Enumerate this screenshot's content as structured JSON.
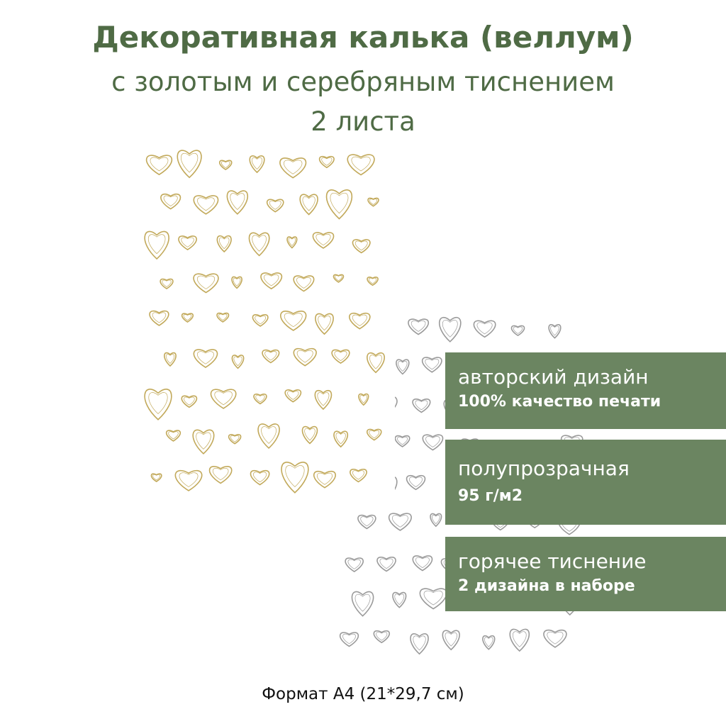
{
  "header": {
    "title": "Декоративная калька (веллум)",
    "subtitle": "с золотым и серебряным тиснением",
    "count": "2 листа"
  },
  "badges": [
    {
      "line1": "авторский дизайн",
      "line2": "100% качество печати"
    },
    {
      "line1": "полупрозрачная",
      "line2": "95 г/м2"
    },
    {
      "line1": "горячее тиснение",
      "line2": "2 дизайна в наборе"
    }
  ],
  "footer": "Формат А4 (21*29,7 см)"
}
